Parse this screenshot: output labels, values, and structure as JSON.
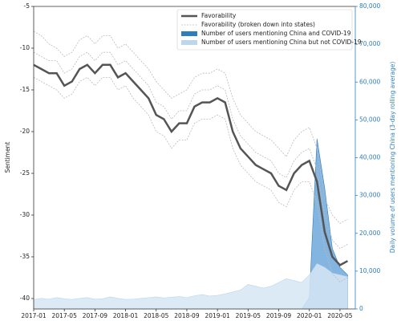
{
  "chart_data": {
    "type": "line",
    "y_label": "Sentiment",
    "y2_label": "Daily volume of users mentioning China (3-day rolling average)",
    "x": [
      "2017-01",
      "2017-02",
      "2017-03",
      "2017-04",
      "2017-05",
      "2017-06",
      "2017-07",
      "2017-08",
      "2017-09",
      "2017-10",
      "2017-11",
      "2017-12",
      "2018-01",
      "2018-02",
      "2018-03",
      "2018-04",
      "2018-05",
      "2018-06",
      "2018-07",
      "2018-08",
      "2018-09",
      "2018-10",
      "2018-11",
      "2018-12",
      "2019-01",
      "2019-02",
      "2019-03",
      "2019-04",
      "2019-05",
      "2019-06",
      "2019-07",
      "2019-08",
      "2019-09",
      "2019-10",
      "2019-11",
      "2019-12",
      "2020-01",
      "2020-02",
      "2020-03",
      "2020-04",
      "2020-05",
      "2020-06"
    ],
    "series": [
      {
        "name": "Favorability",
        "color": "#555555",
        "style": "solid",
        "values": [
          -12,
          -12.5,
          -13,
          -13,
          -14.5,
          -14,
          -12.5,
          -12,
          -13,
          -12,
          -12,
          -13.5,
          -13,
          -14,
          -15,
          -16,
          -18,
          -18.5,
          -20,
          -19,
          -19,
          -17,
          -16.5,
          -16.5,
          -16,
          -16.5,
          -20,
          -22,
          -23,
          -24,
          -24.5,
          -25,
          -26.5,
          -27,
          -25,
          -24,
          -23.5,
          -26,
          -32,
          -35,
          -36,
          -35.5
        ]
      },
      {
        "name": "Favorability (broken down into states)",
        "color": "#bbbbbb",
        "style": "dashed",
        "values": [
          -8,
          -8.5,
          -9.5,
          -10,
          -11,
          -10.5,
          -9,
          -8.5,
          -9.5,
          -8.5,
          -8.5,
          -10,
          -9.5,
          -10.5,
          -11.5,
          -12.5,
          -14,
          -15,
          -16,
          -15.5,
          -15,
          -13.5,
          -13,
          -13,
          -12.5,
          -13,
          -16,
          -18,
          -19,
          -20,
          -20.5,
          -21,
          -22,
          -23,
          -21,
          -20,
          -19.5,
          -22,
          -28,
          -30,
          -31,
          -30.5
        ]
      },
      {
        "color": "#bbbbbb",
        "style": "dashed",
        "values": [
          -13.5,
          -14,
          -14.5,
          -15,
          -16,
          -15.5,
          -14,
          -13.5,
          -14.5,
          -13.5,
          -13.5,
          -15,
          -14.5,
          -16,
          -17,
          -18,
          -20,
          -20.5,
          -22,
          -21,
          -21,
          -19,
          -18.5,
          -18.5,
          -18,
          -18.5,
          -22,
          -24,
          -25,
          -26,
          -26.5,
          -27,
          -28.5,
          -29,
          -27,
          -26,
          -26,
          -28.5,
          -34,
          -37,
          -38,
          -37.5
        ]
      },
      {
        "color": "#bbbbbb",
        "style": "dashed",
        "values": [
          -10.5,
          -11,
          -11.5,
          -11.5,
          -13,
          -12.5,
          -11,
          -10.5,
          -11.5,
          -10.5,
          -10.5,
          -12,
          -11.5,
          -12.5,
          -13.5,
          -14.5,
          -16.5,
          -17,
          -18.5,
          -17.5,
          -17.5,
          -15.5,
          -15,
          -15,
          -14.5,
          -15,
          -18.5,
          -20.5,
          -21.5,
          -22.5,
          -23,
          -23.5,
          -25,
          -25.5,
          -23.5,
          -22.5,
          -22,
          -24.5,
          -30,
          -33,
          -34,
          -33.5
        ]
      },
      {
        "name": "Number of users mentioning China and COVID-19",
        "color": "#2f7ebc",
        "fillcolor": "#6fa8dc",
        "style": "area",
        "axis": "y2",
        "values": [
          0,
          0,
          0,
          0,
          0,
          0,
          0,
          0,
          0,
          0,
          0,
          0,
          0,
          0,
          0,
          0,
          0,
          0,
          0,
          0,
          0,
          0,
          0,
          0,
          0,
          0,
          0,
          0,
          0,
          0,
          0,
          0,
          0,
          0,
          0,
          0,
          3000,
          45000,
          32000,
          16000,
          11000,
          9000
        ]
      },
      {
        "name": "Number of users mentioning China but not COVID-19",
        "color": "#bcd6ec",
        "fillcolor": "#d6e6f3",
        "style": "area",
        "axis": "y2",
        "values": [
          2500,
          2800,
          2600,
          3000,
          2700,
          2500,
          2800,
          3000,
          2600,
          2700,
          3200,
          2800,
          2500,
          2600,
          2800,
          3000,
          3200,
          2900,
          3100,
          3300,
          3000,
          3500,
          3800,
          3400,
          3600,
          4000,
          4500,
          5000,
          6500,
          6000,
          5500,
          6000,
          7000,
          8000,
          7500,
          7000,
          9000,
          12000,
          11000,
          9500,
          9000,
          8500
        ]
      }
    ],
    "xlim": [
      "2017-01",
      "2020-07"
    ],
    "xticks": [
      "2017-01",
      "2017-05",
      "2017-09",
      "2018-01",
      "2018-05",
      "2018-09",
      "2019-01",
      "2019-05",
      "2019-09",
      "2020-01",
      "2020-05"
    ],
    "ylim": [
      -41.25,
      -5
    ],
    "yticks": [
      -5,
      -10,
      -15,
      -20,
      -25,
      -30,
      -35,
      -40
    ],
    "y2lim": [
      0,
      80000
    ],
    "y2ticks": [
      0,
      {
        "value": 10000,
        "label": "10,000"
      },
      {
        "value": 20000,
        "label": "20,000"
      },
      {
        "value": 30000,
        "label": "30,000"
      },
      {
        "value": 40000,
        "label": "40,000"
      },
      {
        "value": 50000,
        "label": "50,000"
      },
      {
        "value": 60000,
        "label": "60,000"
      },
      {
        "value": 70000,
        "label": "70,000"
      },
      {
        "value": 80000,
        "label": "80,000"
      }
    ],
    "y2color": "#2f7ebc",
    "legend": "upper right"
  }
}
